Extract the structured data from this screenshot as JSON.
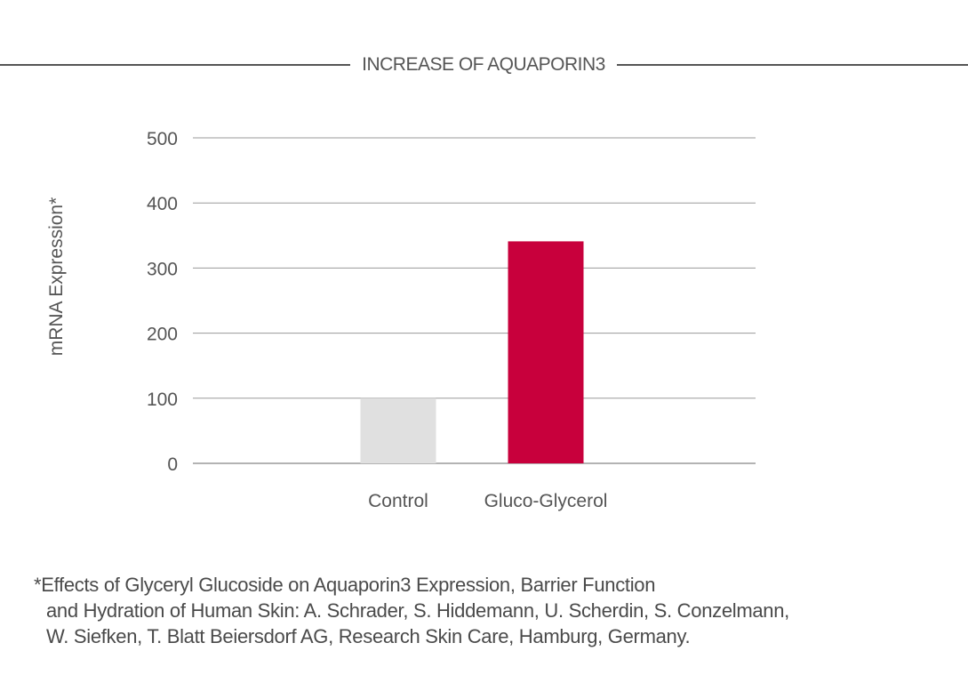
{
  "title": "INCREASE OF AQUAPORIN3",
  "chart_data": {
    "type": "bar",
    "categories": [
      "Control",
      "Gluco-Glycerol"
    ],
    "values": [
      100,
      341
    ],
    "colors": [
      "#e0e0e0",
      "#c8003c"
    ],
    "ylabel": "mRNA Expression*",
    "xlabel": "",
    "ylim": [
      0,
      500
    ],
    "yticks": [
      0,
      100,
      200,
      300,
      400,
      500
    ],
    "grid": true
  },
  "footnote": {
    "line1": "*Effects of Glyceryl Glucoside on Aquaporin3 Expression, Barrier Function",
    "line2": "and Hydration of Human Skin: A. Schrader, S. Hiddemann, U. Scherdin, S. Conzelmann,",
    "line3": "W. Siefken, T. Blatt Beiersdorf AG, Research Skin Care, Hamburg, Germany."
  }
}
